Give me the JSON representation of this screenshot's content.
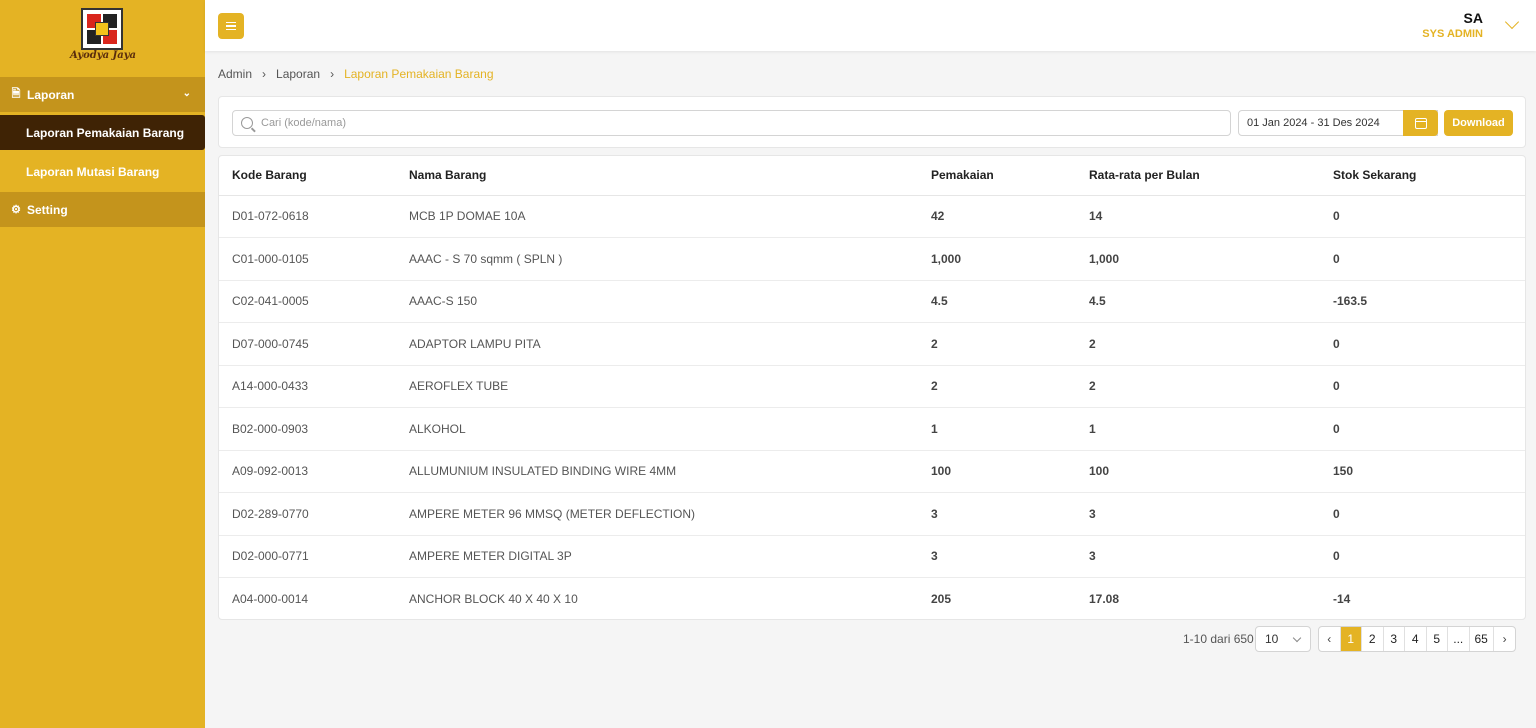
{
  "brand": {
    "logo_text": "Ayodya Jaya"
  },
  "sidebar": {
    "group_laporan": "Laporan",
    "items": [
      "Laporan Pemakaian Barang",
      "Laporan Mutasi Barang"
    ],
    "group_setting": "Setting"
  },
  "header": {
    "initials": "SA",
    "role": "SYS ADMIN"
  },
  "breadcrumb": {
    "items": [
      "Admin",
      "Laporan"
    ],
    "current": "Laporan Pemakaian Barang"
  },
  "filter": {
    "search_placeholder": "Cari (kode/nama)",
    "date_range": "01 Jan 2024 - 31 Des 2024",
    "download_label": "Download"
  },
  "table": {
    "headers": [
      "Kode Barang",
      "Nama Barang",
      "Pemakaian",
      "Rata-rata per Bulan",
      "Stok Sekarang"
    ],
    "rows": [
      [
        "D01-072-0618",
        "MCB 1P DOMAE 10A",
        "42",
        "14",
        "0"
      ],
      [
        "C01-000-0105",
        "AAAC - S 70 sqmm ( SPLN )",
        "1,000",
        "1,000",
        "0"
      ],
      [
        "C02-041-0005",
        "AAAC-S 150",
        "4.5",
        "4.5",
        "-163.5"
      ],
      [
        "D07-000-0745",
        "ADAPTOR LAMPU PITA",
        "2",
        "2",
        "0"
      ],
      [
        "A14-000-0433",
        "AEROFLEX TUBE",
        "2",
        "2",
        "0"
      ],
      [
        "B02-000-0903",
        "ALKOHOL",
        "1",
        "1",
        "0"
      ],
      [
        "A09-092-0013",
        "ALLUMUNIUM INSULATED BINDING WIRE 4MM",
        "100",
        "100",
        "150"
      ],
      [
        "D02-289-0770",
        "AMPERE METER 96 MMSQ (METER DEFLECTION)",
        "3",
        "3",
        "0"
      ],
      [
        "D02-000-0771",
        "AMPERE METER DIGITAL 3P",
        "3",
        "3",
        "0"
      ],
      [
        "A04-000-0014",
        "ANCHOR BLOCK 40 X 40 X 10",
        "205",
        "17.08",
        "-14"
      ]
    ]
  },
  "pagination": {
    "info": "1-10 dari 650",
    "page_size": "10",
    "prev": "‹",
    "next": "›",
    "pages": [
      "1",
      "2",
      "3",
      "4",
      "5",
      "...",
      "65"
    ]
  },
  "colors": {
    "accent": "#e4b324",
    "sidebar_active": "#3f2305",
    "sidebar_group": "#c4941c"
  }
}
